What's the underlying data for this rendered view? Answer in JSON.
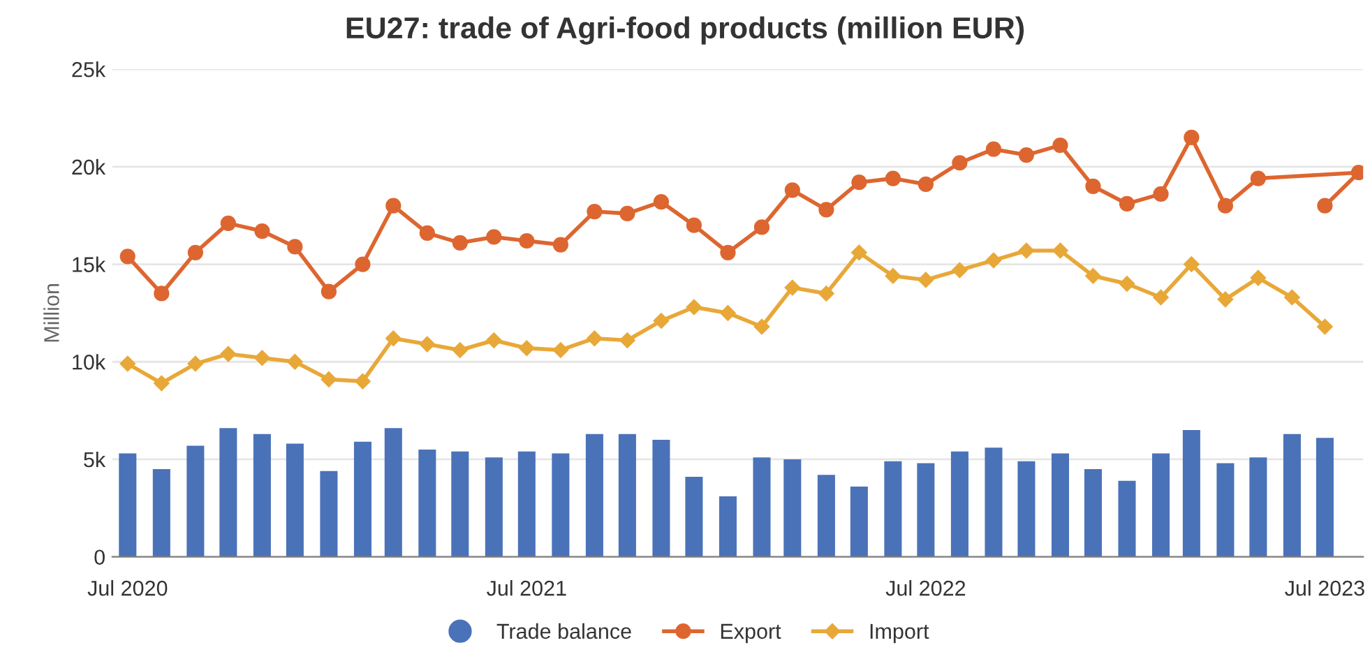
{
  "chart_data": {
    "type": "bar",
    "title": "EU27: trade of Agri-food products (million EUR)",
    "ylabel": "Million",
    "x": [
      "2020-07",
      "2020-08",
      "2020-09",
      "2020-10",
      "2020-11",
      "2020-12",
      "2021-01",
      "2021-02",
      "2021-03",
      "2021-04",
      "2021-05",
      "2021-06",
      "2021-07",
      "2021-08",
      "2021-09",
      "2021-10",
      "2021-11",
      "2021-12",
      "2022-01",
      "2022-02",
      "2022-03",
      "2022-04",
      "2022-05",
      "2022-06",
      "2022-07",
      "2022-08",
      "2022-09",
      "2022-10",
      "2022-11",
      "2022-12",
      "2023-01",
      "2023-02",
      "2023-03",
      "2023-04",
      "2023-05",
      "2023-06",
      "2023-07"
    ],
    "series": [
      {
        "name": "Trade balance",
        "color": "#4a72b8",
        "values": [
          5300,
          4500,
          5700,
          6600,
          6300,
          5800,
          4400,
          5900,
          6600,
          5500,
          5400,
          5100,
          5400,
          5300,
          6300,
          6300,
          6000,
          4100,
          3100,
          5100,
          5000,
          4200,
          3600,
          4900,
          4800,
          5400,
          5600,
          4900,
          5300,
          4500,
          3900,
          5300,
          6500,
          4800,
          5100,
          6300,
          6100
        ]
      },
      {
        "name": "Export",
        "type": "line",
        "marker": "circle",
        "color": "#dd6630",
        "x": [
          "2020-07",
          "2020-08",
          "2020-09",
          "2020-10",
          "2020-11",
          "2020-12",
          "2021-01",
          "2021-02",
          "2021-03",
          "2021-04",
          "2021-05",
          "2021-06",
          "2021-07",
          "2021-08",
          "2021-09",
          "2021-10",
          "2021-11",
          "2021-12",
          "2022-01",
          "2022-02",
          "2022-03",
          "2022-04",
          "2022-05",
          "2022-06",
          "2022-07",
          "2022-08",
          "2022-09",
          "2022-10",
          "2022-11",
          "2022-12",
          "2023-01",
          "2023-02",
          "2023-03",
          "2023-04",
          "2023-05",
          "2023-08",
          "2023-07"
        ],
        "values": [
          15400,
          13500,
          15600,
          17100,
          16700,
          15900,
          13600,
          15000,
          18000,
          16600,
          16100,
          16400,
          16200,
          16000,
          17700,
          17600,
          18200,
          17000,
          15600,
          16900,
          18800,
          17800,
          19200,
          19400,
          19100,
          20200,
          20900,
          20600,
          21100,
          19000,
          18100,
          18600,
          21500,
          18000,
          19400,
          19700,
          18000
        ]
      },
      {
        "name": "Import",
        "type": "line",
        "marker": "diamond",
        "color": "#e8a838",
        "values": [
          9900,
          8900,
          9900,
          10400,
          10200,
          10000,
          9100,
          9000,
          11200,
          10900,
          10600,
          11100,
          10700,
          10600,
          11200,
          11100,
          12100,
          12800,
          12500,
          11800,
          13800,
          13500,
          15600,
          14400,
          14200,
          14700,
          15200,
          15700,
          15700,
          14400,
          14000,
          13300,
          15000,
          13200,
          14300,
          13300,
          11800
        ]
      }
    ],
    "xlim": [
      "2020-06-17",
      "2023-08-05"
    ],
    "xticks": [
      {
        "value": "2020-07",
        "label": "Jul 2020"
      },
      {
        "value": "2021-07",
        "label": "Jul 2021"
      },
      {
        "value": "2022-07",
        "label": "Jul 2022"
      },
      {
        "value": "2023-07",
        "label": "Jul 2023"
      }
    ],
    "ylim": [
      0,
      25000
    ],
    "yticks": [
      {
        "value": 0,
        "label": "0"
      },
      {
        "value": 5000,
        "label": "5k"
      },
      {
        "value": 10000,
        "label": "10k"
      },
      {
        "value": 15000,
        "label": "15k"
      },
      {
        "value": 20000,
        "label": "20k"
      },
      {
        "value": 25000,
        "label": "25k"
      }
    ],
    "grid": "y",
    "legend": "bottom"
  }
}
